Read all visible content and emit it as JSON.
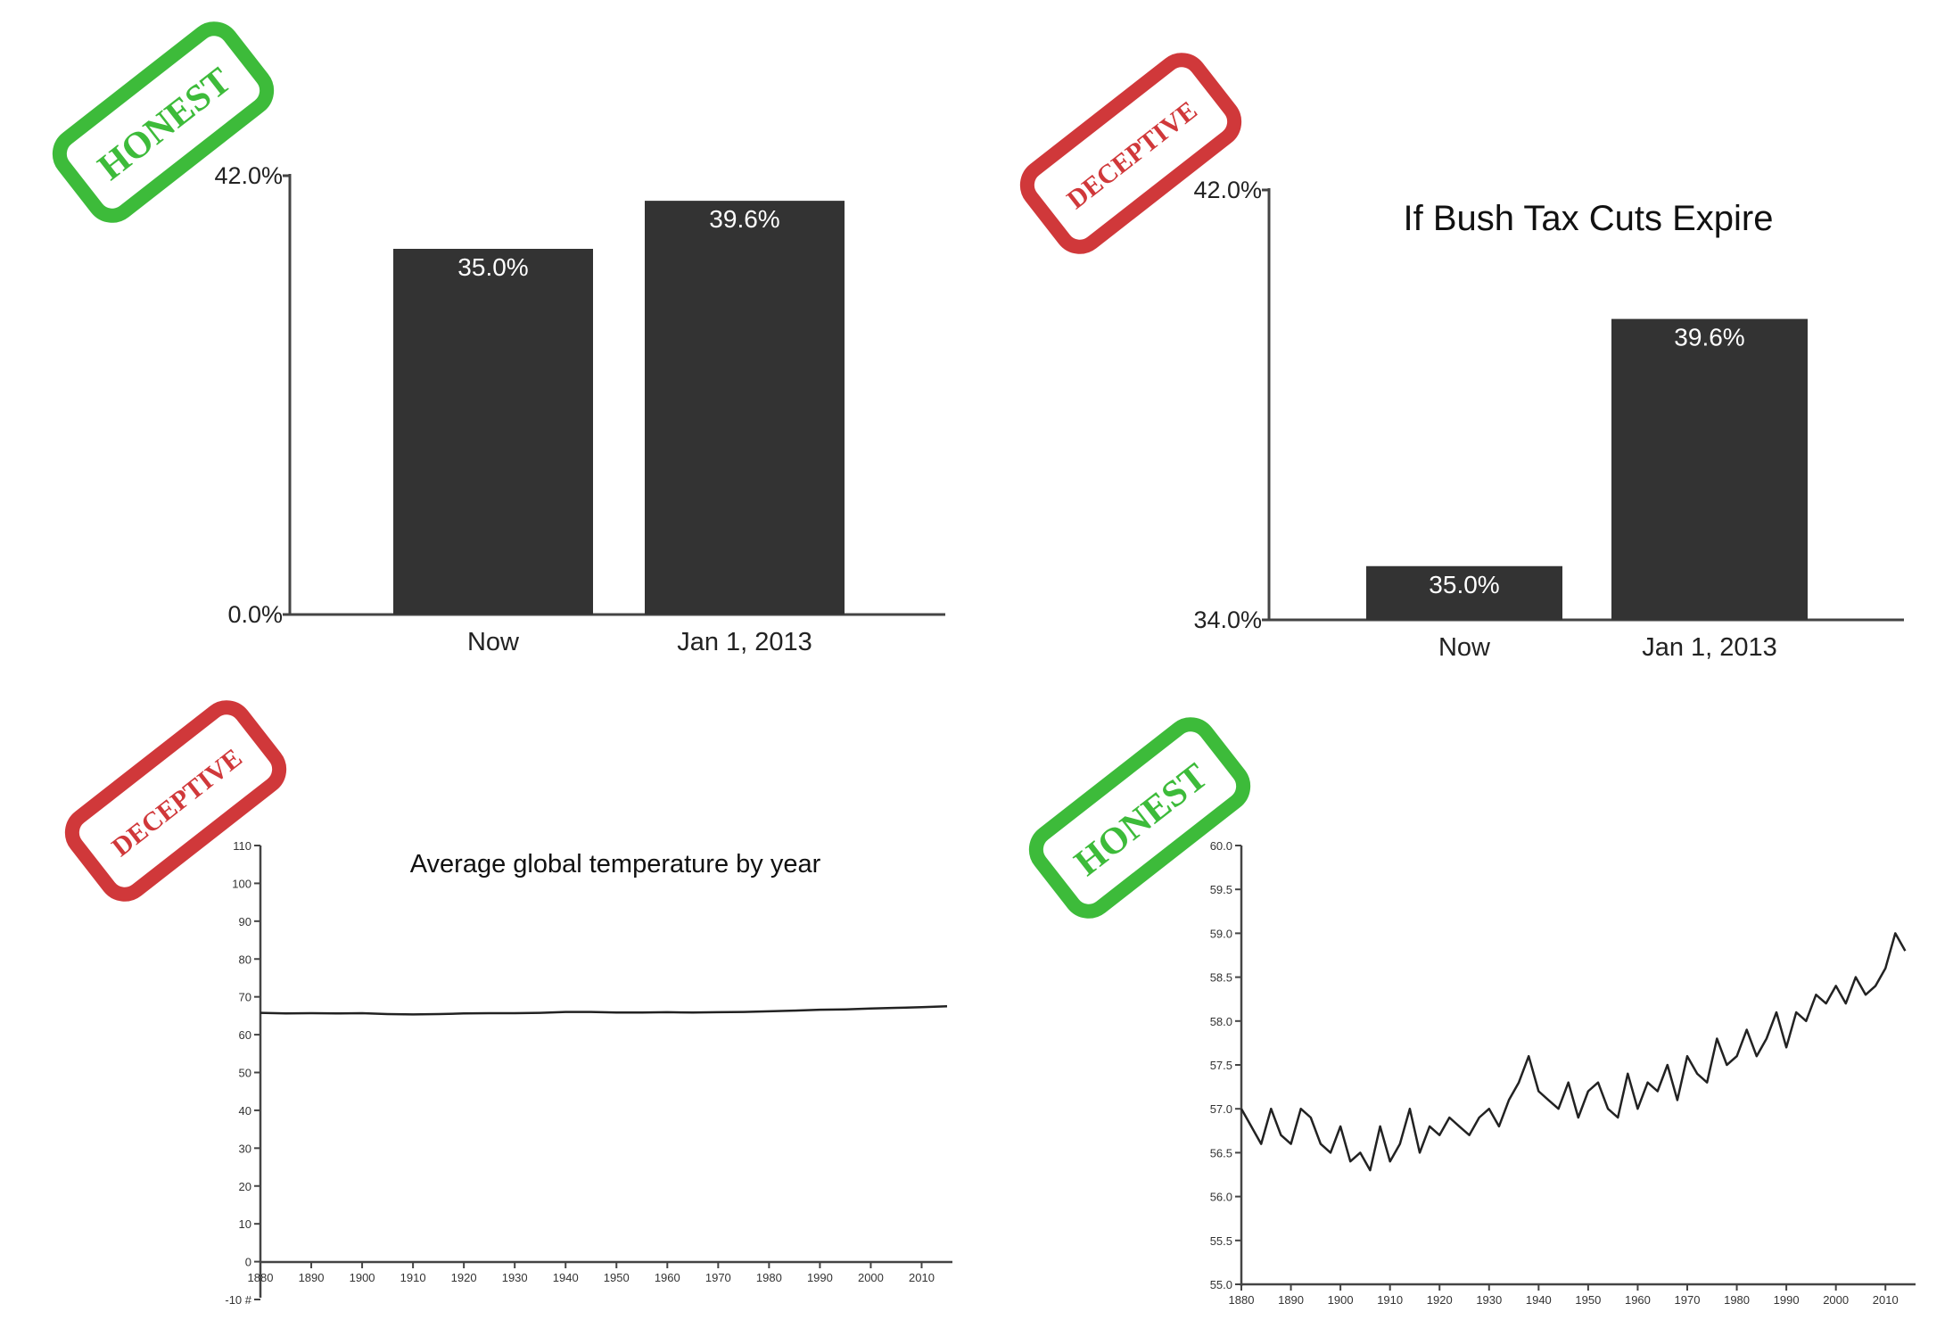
{
  "stamps": {
    "honest_label": "HONEST",
    "deceptive_label": "DECEPTIVE",
    "honest_color": "#3dbb3a",
    "deceptive_color": "#d0383a"
  },
  "colors": {
    "bar": "#333333",
    "axis": "#444444",
    "line": "#222222"
  },
  "chart_data": [
    {
      "type": "bar",
      "title": "",
      "stamp": "HONEST",
      "categories": [
        "Now",
        "Jan 1, 2013"
      ],
      "values": [
        35.0,
        39.6
      ],
      "value_labels": [
        "35.0%",
        "39.6%"
      ],
      "ylim": [
        0,
        42
      ],
      "ytick_labels": [
        "42.0%",
        "0.0%"
      ],
      "xlabel": "",
      "ylabel": ""
    },
    {
      "type": "bar",
      "title": "If Bush Tax Cuts Expire",
      "stamp": "DECEPTIVE",
      "categories": [
        "Now",
        "Jan 1, 2013"
      ],
      "values": [
        35.0,
        39.6
      ],
      "value_labels": [
        "35.0%",
        "39.6%"
      ],
      "ylim": [
        34,
        42
      ],
      "ytick_labels": [
        "42.0%",
        "34.0%"
      ],
      "xlabel": "",
      "ylabel": ""
    },
    {
      "type": "line",
      "title": "Average global temperature by year",
      "stamp": "DECEPTIVE",
      "ylim": [
        -10,
        110
      ],
      "yticks": [
        "110",
        "100",
        "90",
        "80",
        "70",
        "60",
        "50",
        "40",
        "30",
        "20",
        "10",
        "0",
        "-10 #"
      ],
      "xticks": [
        "1880",
        "1890",
        "1900",
        "1910",
        "1920",
        "1930",
        "1940",
        "1950",
        "1960",
        "1970",
        "1980",
        "1990",
        "2000",
        "2010"
      ],
      "xrange": [
        1880,
        2015
      ],
      "series": [
        {
          "x": [
            1880,
            1885,
            1890,
            1895,
            1900,
            1905,
            1910,
            1915,
            1920,
            1925,
            1930,
            1935,
            1940,
            1945,
            1950,
            1955,
            1960,
            1965,
            1970,
            1975,
            1980,
            1985,
            1990,
            1995,
            2000,
            2005,
            2010,
            2015
          ],
          "values": [
            56.9,
            56.7,
            56.8,
            56.7,
            56.8,
            56.5,
            56.4,
            56.5,
            56.7,
            56.8,
            56.8,
            56.9,
            57.2,
            57.2,
            57.0,
            57.0,
            57.1,
            57.0,
            57.1,
            57.2,
            57.4,
            57.6,
            57.9,
            58.0,
            58.3,
            58.5,
            58.7,
            59.0
          ]
        }
      ]
    },
    {
      "type": "line",
      "title": "",
      "stamp": "HONEST",
      "ylim": [
        55.0,
        60.0
      ],
      "yticks": [
        "60.0",
        "59.5",
        "59.0",
        "58.5",
        "58.0",
        "57.5",
        "57.0",
        "56.5",
        "56.0",
        "55.5",
        "55.0"
      ],
      "xticks": [
        "1880",
        "1890",
        "1900",
        "1910",
        "1920",
        "1930",
        "1940",
        "1950",
        "1960",
        "1970",
        "1980",
        "1990",
        "2000",
        "2010"
      ],
      "xrange": [
        1880,
        2015
      ],
      "series": [
        {
          "x": [
            1880,
            1882,
            1884,
            1886,
            1888,
            1890,
            1892,
            1894,
            1896,
            1898,
            1900,
            1902,
            1904,
            1906,
            1908,
            1910,
            1912,
            1914,
            1916,
            1918,
            1920,
            1922,
            1924,
            1926,
            1928,
            1930,
            1932,
            1934,
            1936,
            1938,
            1940,
            1942,
            1944,
            1946,
            1948,
            1950,
            1952,
            1954,
            1956,
            1958,
            1960,
            1962,
            1964,
            1966,
            1968,
            1970,
            1972,
            1974,
            1976,
            1978,
            1980,
            1982,
            1984,
            1986,
            1988,
            1990,
            1992,
            1994,
            1996,
            1998,
            2000,
            2002,
            2004,
            2006,
            2008,
            2010,
            2012,
            2014
          ],
          "values": [
            57.0,
            56.8,
            56.6,
            57.0,
            56.7,
            56.6,
            57.0,
            56.9,
            56.6,
            56.5,
            56.8,
            56.4,
            56.5,
            56.3,
            56.8,
            56.4,
            56.6,
            57.0,
            56.5,
            56.8,
            56.7,
            56.9,
            56.8,
            56.7,
            56.9,
            57.0,
            56.8,
            57.1,
            57.3,
            57.6,
            57.2,
            57.1,
            57.0,
            57.3,
            56.9,
            57.2,
            57.3,
            57.0,
            56.9,
            57.4,
            57.0,
            57.3,
            57.2,
            57.5,
            57.1,
            57.6,
            57.4,
            57.3,
            57.8,
            57.5,
            57.6,
            57.9,
            57.6,
            57.8,
            58.1,
            57.7,
            58.1,
            58.0,
            58.3,
            58.2,
            58.4,
            58.2,
            58.5,
            58.3,
            58.4,
            58.6,
            59.0,
            58.8
          ]
        }
      ]
    }
  ]
}
